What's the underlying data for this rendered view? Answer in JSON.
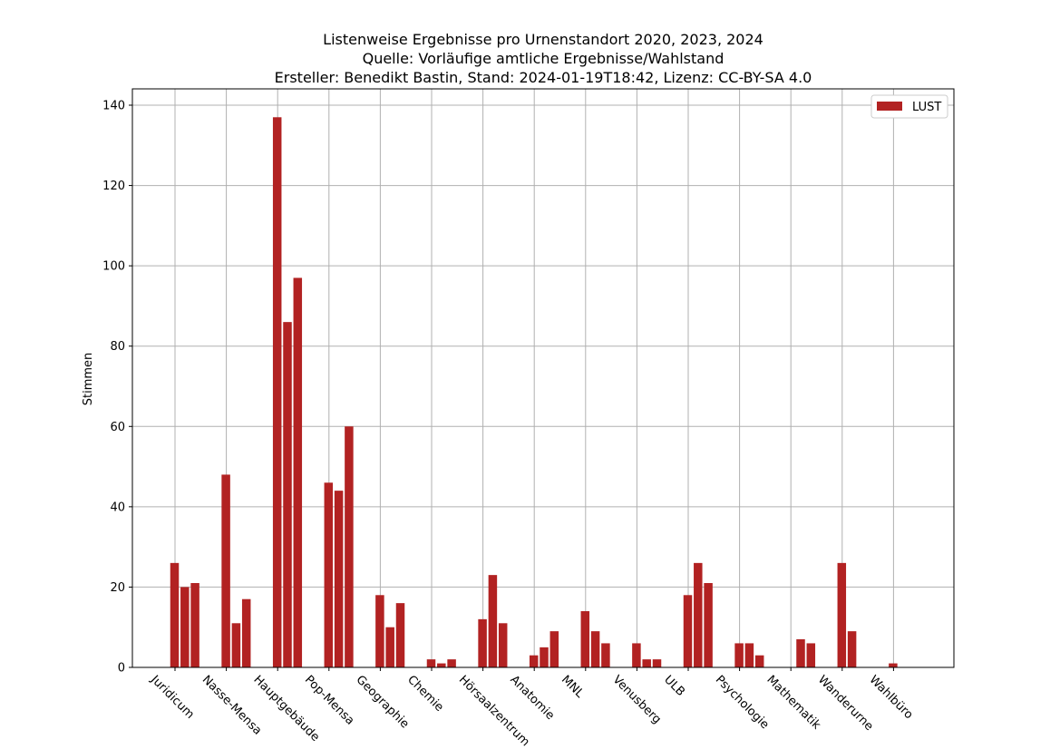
{
  "chart_data": {
    "type": "bar",
    "title": [
      "Listenweise Ergebnisse pro Urnenstandort 2020, 2023, 2024",
      "Quelle: Vorläufige amtliche Ergebnisse/Wahlstand",
      "Ersteller: Benedikt Bastin, Stand: 2024-01-19T18:42, Lizenz: CC-BY-SA 4.0"
    ],
    "ylabel": "Stimmen",
    "xlabel": "",
    "ylim": [
      0,
      143
    ],
    "yticks": [
      0,
      20,
      40,
      60,
      80,
      100,
      120,
      140
    ],
    "grid": true,
    "legend_position": "top-right",
    "bar_color": "#b22222",
    "categories": [
      "Juridicum",
      "Nasse-Mensa",
      "Hauptgebäude",
      "Pop-Mensa",
      "Geographie",
      "Chemie",
      "Hörsaalzentrum",
      "Anatomie",
      "MNL",
      "Venusberg",
      "ULB",
      "Psychologie",
      "Mathematik",
      "Wanderurne",
      "Wahlbüro"
    ],
    "series": [
      {
        "name": "LUST",
        "values": [
          [
            26,
            20,
            21
          ],
          [
            48,
            11,
            17
          ],
          [
            137,
            86,
            97
          ],
          [
            46,
            44,
            60
          ],
          [
            18,
            10,
            16
          ],
          [
            2,
            1,
            2
          ],
          [
            12,
            23,
            11
          ],
          [
            3,
            5,
            9
          ],
          [
            14,
            9,
            6
          ],
          [
            6,
            2,
            2
          ],
          [
            18,
            26,
            21
          ],
          [
            6,
            6,
            3
          ],
          [
            null,
            7,
            6
          ],
          [
            26,
            9,
            null
          ],
          [
            1,
            null,
            null
          ]
        ]
      }
    ]
  }
}
